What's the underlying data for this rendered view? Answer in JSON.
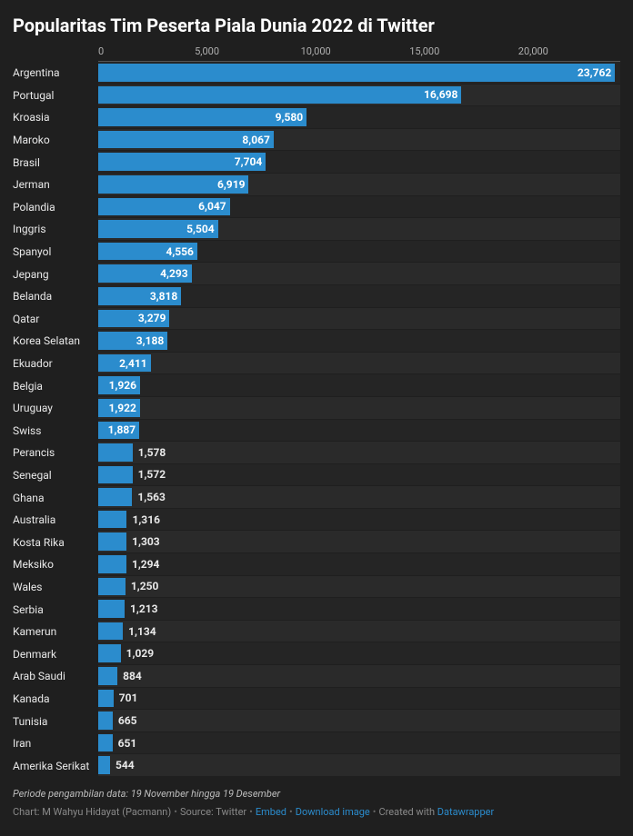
{
  "title": "Popularitas Tim Peserta Piala Dunia 2022 di Twitter",
  "chart": {
    "type": "bar-horizontal",
    "xmax": 24000,
    "xticks": [
      0,
      5000,
      10000,
      15000,
      20000
    ],
    "xtick_labels": [
      "0",
      "5,000",
      "10,000",
      "15,000",
      "20,000"
    ],
    "bar_color": "#2b8ccd",
    "bg_color": "#1f1f1f",
    "grid_color": "#555555",
    "label_fontsize": 12,
    "value_fontsize": 12,
    "title_fontsize": 20,
    "label_inside_threshold": 1600,
    "rows": [
      {
        "label": "Argentina",
        "value": 23762,
        "display": "23,762"
      },
      {
        "label": "Portugal",
        "value": 16698,
        "display": "16,698"
      },
      {
        "label": "Kroasia",
        "value": 9580,
        "display": "9,580"
      },
      {
        "label": "Maroko",
        "value": 8067,
        "display": "8,067"
      },
      {
        "label": "Brasil",
        "value": 7704,
        "display": "7,704"
      },
      {
        "label": "Jerman",
        "value": 6919,
        "display": "6,919"
      },
      {
        "label": "Polandia",
        "value": 6047,
        "display": "6,047"
      },
      {
        "label": "Inggris",
        "value": 5504,
        "display": "5,504"
      },
      {
        "label": "Spanyol",
        "value": 4556,
        "display": "4,556"
      },
      {
        "label": "Jepang",
        "value": 4293,
        "display": "4,293"
      },
      {
        "label": "Belanda",
        "value": 3818,
        "display": "3,818"
      },
      {
        "label": "Qatar",
        "value": 3279,
        "display": "3,279"
      },
      {
        "label": "Korea Selatan",
        "value": 3188,
        "display": "3,188"
      },
      {
        "label": "Ekuador",
        "value": 2411,
        "display": "2,411"
      },
      {
        "label": "Belgia",
        "value": 1926,
        "display": "1,926"
      },
      {
        "label": "Uruguay",
        "value": 1922,
        "display": "1,922"
      },
      {
        "label": "Swiss",
        "value": 1887,
        "display": "1,887"
      },
      {
        "label": "Perancis",
        "value": 1578,
        "display": "1,578"
      },
      {
        "label": "Senegal",
        "value": 1572,
        "display": "1,572"
      },
      {
        "label": "Ghana",
        "value": 1563,
        "display": "1,563"
      },
      {
        "label": "Australia",
        "value": 1316,
        "display": "1,316"
      },
      {
        "label": "Kosta Rika",
        "value": 1303,
        "display": "1,303"
      },
      {
        "label": "Meksiko",
        "value": 1294,
        "display": "1,294"
      },
      {
        "label": "Wales",
        "value": 1250,
        "display": "1,250"
      },
      {
        "label": "Serbia",
        "value": 1213,
        "display": "1,213"
      },
      {
        "label": "Kamerun",
        "value": 1134,
        "display": "1,134"
      },
      {
        "label": "Denmark",
        "value": 1029,
        "display": "1,029"
      },
      {
        "label": "Arab Saudi",
        "value": 884,
        "display": "884"
      },
      {
        "label": "Kanada",
        "value": 701,
        "display": "701"
      },
      {
        "label": "Tunisia",
        "value": 665,
        "display": "665"
      },
      {
        "label": "Iran",
        "value": 651,
        "display": "651"
      },
      {
        "label": "Amerika Serikat",
        "value": 544,
        "display": "544"
      }
    ]
  },
  "footer": {
    "note": "Periode pengambilan data: 19 November hingga 19 Desember",
    "chart_credit_prefix": "Chart: ",
    "chart_credit": "M Wahyu Hidayat (Pacmann)",
    "source_prefix": "Source: ",
    "source": "Twitter",
    "embed": "Embed",
    "download": "Download image",
    "created_prefix": "Created with ",
    "created": "Datawrapper"
  }
}
